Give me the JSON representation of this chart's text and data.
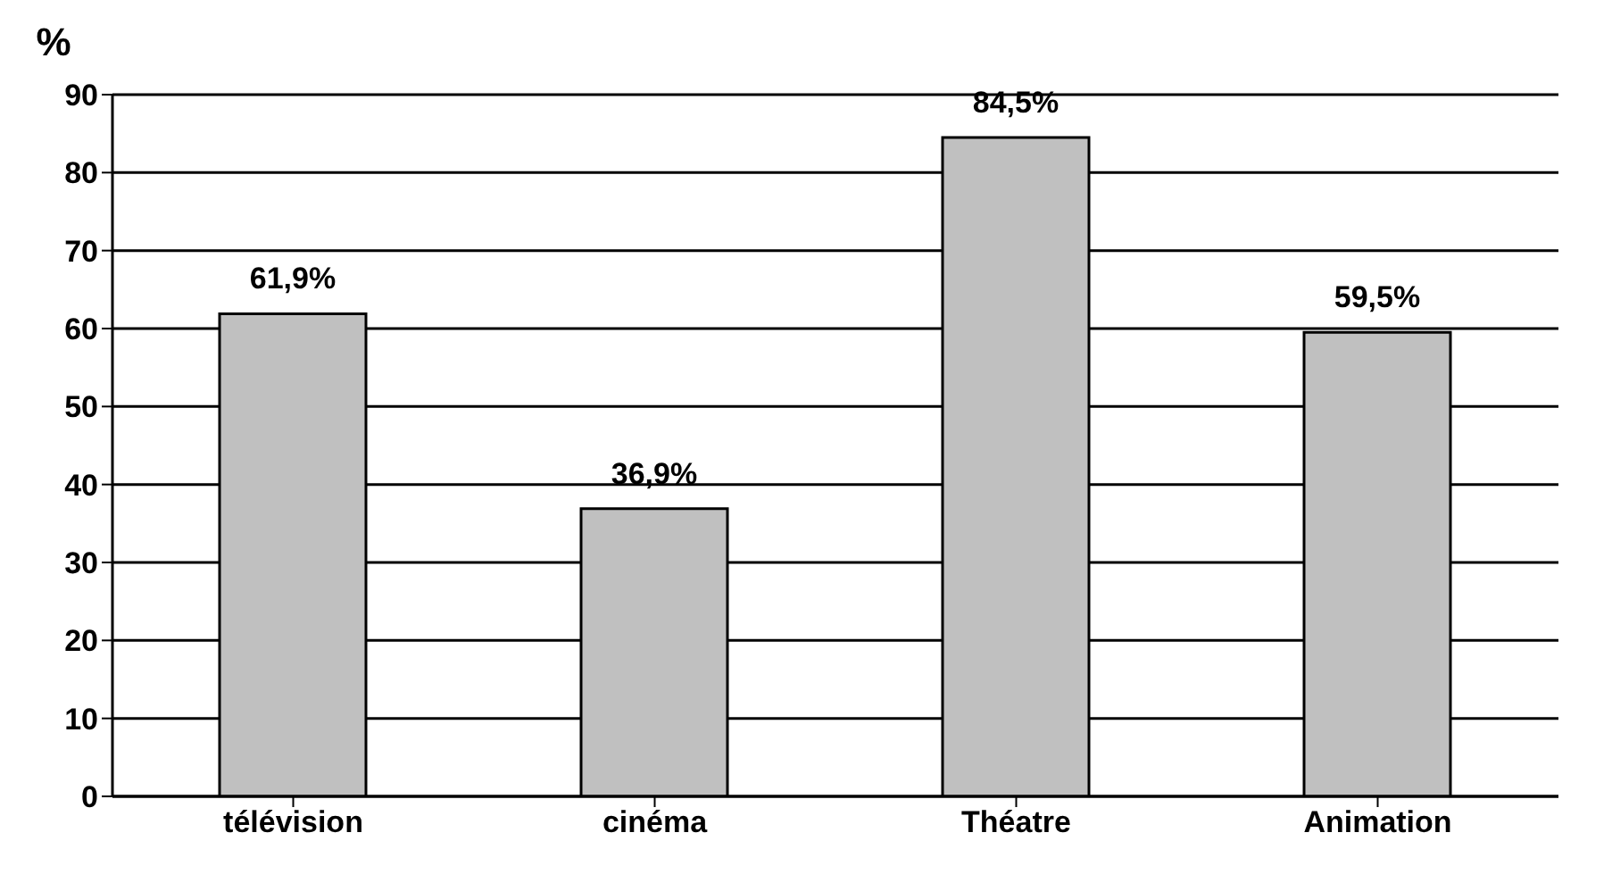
{
  "chart_data": {
    "type": "bar",
    "ylabel": "%",
    "categories": [
      "télévision",
      "cinéma",
      "Théatre",
      "Animation"
    ],
    "values": [
      61.9,
      36.9,
      84.5,
      59.5
    ],
    "value_labels": [
      "61,9%",
      "36,9%",
      "84,5%",
      "59,5%"
    ],
    "color": "#c0c0c0",
    "ylim": [
      0,
      90
    ],
    "yticks": [
      0,
      10,
      20,
      30,
      40,
      50,
      60,
      70,
      80,
      90
    ],
    "grid": "y"
  }
}
